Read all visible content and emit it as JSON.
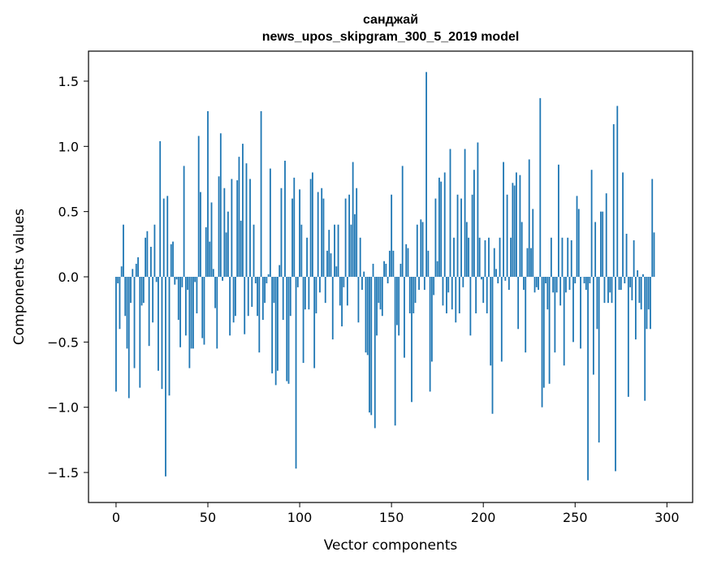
{
  "chart_data": {
    "type": "bar",
    "title_line1": "санджай",
    "title_line2": "news_upos_skipgram_300_5_2019 model",
    "xlabel": "Vector components",
    "ylabel": "Components values",
    "xlim": [
      -15,
      314
    ],
    "ylim": [
      -1.73,
      1.73
    ],
    "xticks": [
      0,
      50,
      100,
      150,
      200,
      250,
      300
    ],
    "yticks": [
      -1.5,
      -1.0,
      -0.5,
      0.0,
      0.5,
      1.0,
      1.5
    ],
    "ytick_labels": [
      "−1.5",
      "−1.0",
      "−0.5",
      "0.0",
      "0.5",
      "1.0",
      "1.5"
    ],
    "bar_color": "#1f77b4",
    "values": [
      -0.88,
      -0.05,
      -0.4,
      0.08,
      0.4,
      -0.3,
      -0.55,
      -0.93,
      -0.2,
      0.06,
      -0.7,
      0.1,
      0.15,
      -0.85,
      -0.22,
      -0.2,
      0.3,
      0.35,
      -0.53,
      0.23,
      -0.35,
      0.4,
      -0.04,
      -0.72,
      1.04,
      -0.86,
      0.6,
      -1.53,
      0.62,
      -0.91,
      0.25,
      0.27,
      -0.06,
      -0.02,
      -0.33,
      -0.54,
      -0.08,
      0.85,
      -0.45,
      -0.1,
      -0.7,
      -0.55,
      -0.55,
      -0.04,
      -0.28,
      1.08,
      0.65,
      -0.47,
      -0.52,
      0.38,
      1.27,
      0.27,
      0.57,
      0.06,
      -0.24,
      -0.55,
      0.77,
      1.1,
      -0.03,
      0.68,
      0.34,
      0.5,
      -0.45,
      0.75,
      -0.35,
      -0.3,
      0.74,
      0.92,
      0.43,
      1.02,
      -0.44,
      0.87,
      -0.3,
      0.75,
      -0.23,
      0.4,
      -0.05,
      -0.3,
      -0.58,
      1.27,
      -0.33,
      -0.2,
      -0.05,
      0.02,
      0.83,
      -0.74,
      -0.2,
      -0.83,
      -0.72,
      0.09,
      0.68,
      -0.33,
      0.89,
      -0.8,
      -0.82,
      -0.3,
      0.6,
      0.76,
      -1.47,
      -0.08,
      0.67,
      0.4,
      -0.66,
      -0.25,
      0.3,
      -0.25,
      0.75,
      0.8,
      -0.7,
      -0.28,
      0.65,
      -0.12,
      0.68,
      0.6,
      -0.2,
      0.2,
      0.36,
      0.18,
      -0.48,
      0.4,
      0.08,
      0.4,
      -0.22,
      -0.38,
      -0.08,
      0.6,
      -0.22,
      0.63,
      0.4,
      0.88,
      0.48,
      0.68,
      -0.35,
      0.3,
      -0.1,
      0.04,
      -0.58,
      -0.6,
      -1.04,
      -1.06,
      0.1,
      -1.16,
      -0.45,
      -0.2,
      -0.25,
      -0.3,
      0.12,
      0.1,
      -0.05,
      0.2,
      0.63,
      0.2,
      -1.14,
      -0.37,
      -0.45,
      0.1,
      0.85,
      -0.62,
      0.25,
      0.22,
      -0.28,
      -0.96,
      -0.28,
      -0.2,
      0.4,
      -0.1,
      0.44,
      0.42,
      -0.1,
      1.57,
      0.2,
      -0.88,
      -0.65,
      -0.14,
      0.6,
      0.12,
      0.76,
      0.73,
      -0.22,
      0.8,
      -0.28,
      -0.12,
      0.98,
      -0.25,
      0.3,
      -0.35,
      0.63,
      -0.28,
      0.6,
      -0.08,
      0.98,
      0.42,
      0.3,
      -0.45,
      0.63,
      0.82,
      -0.28,
      1.03,
      0.3,
      -0.02,
      -0.2,
      0.28,
      -0.28,
      0.3,
      -0.68,
      -1.05,
      0.22,
      0.06,
      -0.05,
      0.3,
      -0.65,
      0.88,
      -0.03,
      0.63,
      -0.1,
      0.3,
      0.72,
      0.7,
      0.8,
      -0.4,
      0.78,
      0.42,
      -0.1,
      -0.58,
      0.22,
      0.9,
      0.22,
      0.52,
      -0.12,
      -0.08,
      -0.1,
      1.37,
      -1.0,
      -0.85,
      -0.05,
      -0.25,
      -0.82,
      0.3,
      -0.12,
      -0.58,
      -0.12,
      0.86,
      -0.22,
      0.3,
      -0.68,
      -0.12,
      0.3,
      -0.1,
      0.28,
      -0.5,
      -0.05,
      0.62,
      0.52,
      -0.55,
      0.0,
      -0.05,
      -0.1,
      -1.56,
      -0.05,
      0.82,
      -0.75,
      0.42,
      -0.4,
      -1.27,
      0.5,
      0.5,
      -0.2,
      0.64,
      -0.2,
      -0.12,
      -0.2,
      1.17,
      -1.49,
      1.31,
      -0.1,
      -0.1,
      0.8,
      -0.05,
      0.33,
      -0.92,
      -0.08,
      -0.18,
      0.28,
      -0.48,
      0.05,
      -0.2,
      -0.25,
      0.02,
      -0.95,
      -0.4,
      -0.25,
      -0.4,
      0.75,
      0.34
    ]
  }
}
